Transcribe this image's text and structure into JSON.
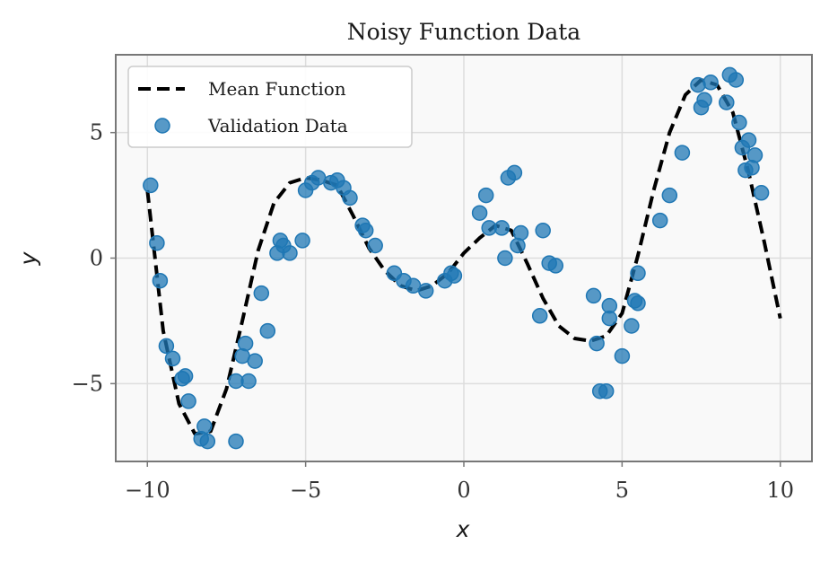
{
  "chart_data": {
    "type": "scatter",
    "title": "Noisy Function Data",
    "xlabel": "x",
    "ylabel": "y",
    "xlim": [
      -11,
      11
    ],
    "ylim": [
      -8.1,
      8.1
    ],
    "xticks": [
      -10,
      -5,
      0,
      5,
      10
    ],
    "yticks": [
      -5,
      0,
      5
    ],
    "xtick_labels": [
      "−10",
      "−5",
      "0",
      "5",
      "10"
    ],
    "ytick_labels": [
      "−5",
      "0",
      "5"
    ],
    "grid": true,
    "legend_position": "top-left",
    "colors": {
      "mean_line": "#000000",
      "points": "#1f77b4",
      "plot_background": "#f9f9f9",
      "grid": "#dddddd",
      "frame": "#777777"
    },
    "series": [
      {
        "name": "Mean Function",
        "kind": "line",
        "style": "dashed",
        "x": [
          -10.0,
          -9.5,
          -9.0,
          -8.5,
          -8.0,
          -7.5,
          -7.0,
          -6.5,
          -6.0,
          -5.5,
          -5.0,
          -4.5,
          -4.0,
          -3.5,
          -3.0,
          -2.5,
          -2.0,
          -1.5,
          -1.0,
          -0.5,
          0.0,
          0.5,
          1.0,
          1.5,
          2.0,
          2.5,
          3.0,
          3.5,
          4.0,
          4.5,
          5.0,
          5.5,
          6.0,
          6.5,
          7.0,
          7.5,
          8.0,
          8.5,
          9.0,
          9.5,
          10.0
        ],
        "y": [
          2.7,
          -2.9,
          -5.8,
          -7.0,
          -6.9,
          -5.2,
          -2.5,
          0.3,
          2.2,
          3.0,
          3.2,
          3.1,
          2.9,
          1.7,
          0.4,
          -0.5,
          -1.1,
          -1.3,
          -1.1,
          -0.6,
          0.2,
          0.8,
          1.3,
          1.1,
          -0.2,
          -1.6,
          -2.7,
          -3.2,
          -3.3,
          -3.1,
          -2.2,
          0.1,
          2.7,
          5.0,
          6.5,
          7.1,
          6.9,
          5.8,
          3.4,
          0.6,
          -2.4
        ]
      },
      {
        "name": "Validation Data",
        "kind": "scatter",
        "x": [
          -9.9,
          -9.7,
          -9.6,
          -9.4,
          -9.2,
          -8.9,
          -8.8,
          -8.7,
          -8.3,
          -8.2,
          -8.1,
          -7.2,
          -7.2,
          -7.0,
          -6.9,
          -6.8,
          -6.6,
          -6.4,
          -6.2,
          -5.9,
          -5.8,
          -5.7,
          -5.5,
          -5.1,
          -5.0,
          -4.8,
          -4.6,
          -4.2,
          -4.0,
          -3.8,
          -3.6,
          -3.2,
          -3.1,
          -2.8,
          -2.2,
          -1.9,
          -1.6,
          -1.2,
          -0.6,
          -0.4,
          -0.3,
          0.5,
          0.7,
          0.8,
          1.2,
          1.3,
          1.4,
          1.6,
          1.7,
          1.8,
          2.4,
          2.5,
          2.7,
          2.9,
          4.1,
          4.2,
          4.3,
          4.5,
          4.6,
          4.6,
          5.0,
          5.3,
          5.4,
          5.5,
          5.5,
          6.2,
          6.5,
          6.9,
          7.4,
          7.5,
          7.6,
          7.8,
          8.3,
          8.4,
          8.6,
          8.7,
          8.8,
          8.9,
          9.0,
          9.1,
          9.2,
          9.4
        ],
        "y": [
          2.9,
          0.6,
          -0.9,
          -3.5,
          -4.0,
          -4.8,
          -4.7,
          -5.7,
          -7.2,
          -6.7,
          -7.3,
          -4.9,
          -7.3,
          -3.9,
          -3.4,
          -4.9,
          -4.1,
          -1.4,
          -2.9,
          0.2,
          0.7,
          0.5,
          0.2,
          0.7,
          2.7,
          3.0,
          3.2,
          3.0,
          3.1,
          2.8,
          2.4,
          1.3,
          1.1,
          0.5,
          -0.6,
          -0.9,
          -1.1,
          -1.3,
          -0.9,
          -0.6,
          -0.7,
          1.8,
          2.5,
          1.2,
          1.2,
          0.0,
          3.2,
          3.4,
          0.5,
          1.0,
          -2.3,
          1.1,
          -0.2,
          -0.3,
          -1.5,
          -3.4,
          -5.3,
          -5.3,
          -2.4,
          -1.9,
          -3.9,
          -2.7,
          -1.7,
          -0.6,
          -1.8,
          1.5,
          2.5,
          4.2,
          6.9,
          6.0,
          6.3,
          7.0,
          6.2,
          7.3,
          7.1,
          5.4,
          4.4,
          3.5,
          4.7,
          3.6,
          4.1,
          2.6
        ]
      }
    ]
  }
}
